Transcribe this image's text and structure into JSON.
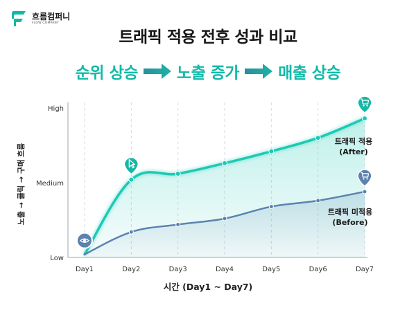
{
  "brand": {
    "name": "흐름컴퍼니",
    "sub": "FLOW COMPANY",
    "color": "#14b8a6"
  },
  "colors": {
    "after": "#1cc9b5",
    "before": "#5b82b0",
    "accent": "#13b9a8"
  },
  "flow": {
    "steps": [
      "순위 상승",
      "노출 증가",
      "매출 상승"
    ]
  },
  "chart_data": {
    "type": "line",
    "title": "트래픽 적용 전후 성과 비교",
    "xlabel": "시간 (Day1 ~ Day7)",
    "ylabel": "노출 → 클릭 → 구매 흐름",
    "categories": [
      "Day1",
      "Day2",
      "Day3",
      "Day4",
      "Day5",
      "Day6",
      "Day7"
    ],
    "yticks": [
      "Low",
      "Medium",
      "High"
    ],
    "ylim": [
      0,
      100
    ],
    "series": [
      {
        "name": "after",
        "label_line1": "트래픽 적용",
        "label_line2": "(After)",
        "values": [
          2,
          52,
          56,
          63,
          71,
          80,
          93
        ]
      },
      {
        "name": "before",
        "label_line1": "트래픽 미적용",
        "label_line2": "(Before)",
        "values": [
          2,
          17,
          22,
          26,
          34,
          38,
          44
        ]
      }
    ],
    "markers": [
      {
        "series": "after",
        "index": 0,
        "icon": "eye-icon"
      },
      {
        "series": "after",
        "index": 1,
        "icon": "cursor-icon"
      },
      {
        "series": "after",
        "index": 6,
        "icon": "cart-icon"
      },
      {
        "series": "before",
        "index": 6,
        "icon": "cart-icon"
      }
    ]
  }
}
